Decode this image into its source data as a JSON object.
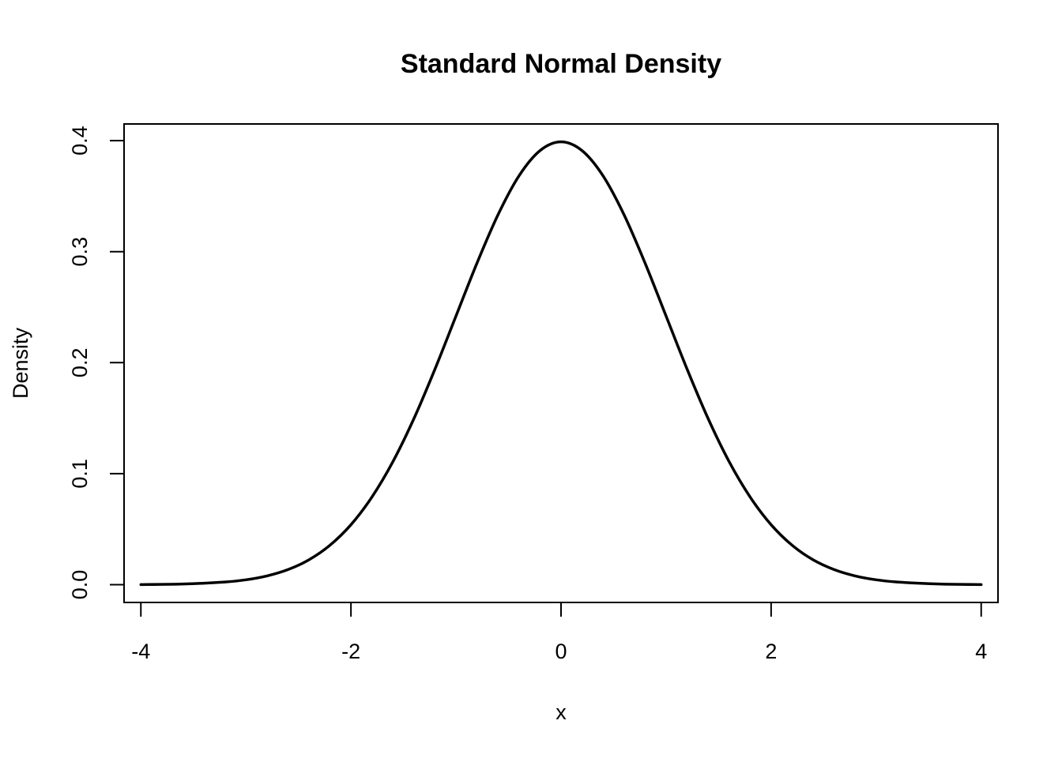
{
  "chart_data": {
    "type": "line",
    "title": "Standard Normal Density",
    "xlabel": "x",
    "ylabel": "Density",
    "xlim": [
      -4.16,
      4.16
    ],
    "ylim": [
      -0.016,
      0.415
    ],
    "x_ticks": [
      -4,
      -2,
      0,
      2,
      4
    ],
    "x_tick_labels": [
      "-4",
      "-2",
      "0",
      "2",
      "4"
    ],
    "y_ticks": [
      0.0,
      0.1,
      0.2,
      0.3,
      0.4
    ],
    "y_tick_labels": [
      "0.0",
      "0.1",
      "0.2",
      "0.3",
      "0.4"
    ],
    "grid": false,
    "series": [
      {
        "color": "#000000",
        "x": [
          -4.0,
          -3.6,
          -3.2,
          -3.0,
          -2.8,
          -2.6,
          -2.4,
          -2.2,
          -2.0,
          -1.8,
          -1.6,
          -1.4,
          -1.2,
          -1.0,
          -0.8,
          -0.6,
          -0.4,
          -0.2,
          0.0,
          0.2,
          0.4,
          0.6,
          0.8,
          1.0,
          1.2,
          1.4,
          1.6,
          1.8,
          2.0,
          2.2,
          2.4,
          2.6,
          2.8,
          3.0,
          3.2,
          3.6,
          4.0
        ],
        "y": [
          0.0001,
          0.0006,
          0.0024,
          0.0044,
          0.0079,
          0.0136,
          0.0224,
          0.0355,
          0.054,
          0.079,
          0.1109,
          0.1497,
          0.1942,
          0.242,
          0.2897,
          0.3332,
          0.3683,
          0.391,
          0.3989,
          0.391,
          0.3683,
          0.3332,
          0.2897,
          0.242,
          0.1942,
          0.1497,
          0.1109,
          0.079,
          0.054,
          0.0355,
          0.0224,
          0.0136,
          0.0079,
          0.0044,
          0.0024,
          0.0006,
          0.0001
        ]
      }
    ]
  }
}
